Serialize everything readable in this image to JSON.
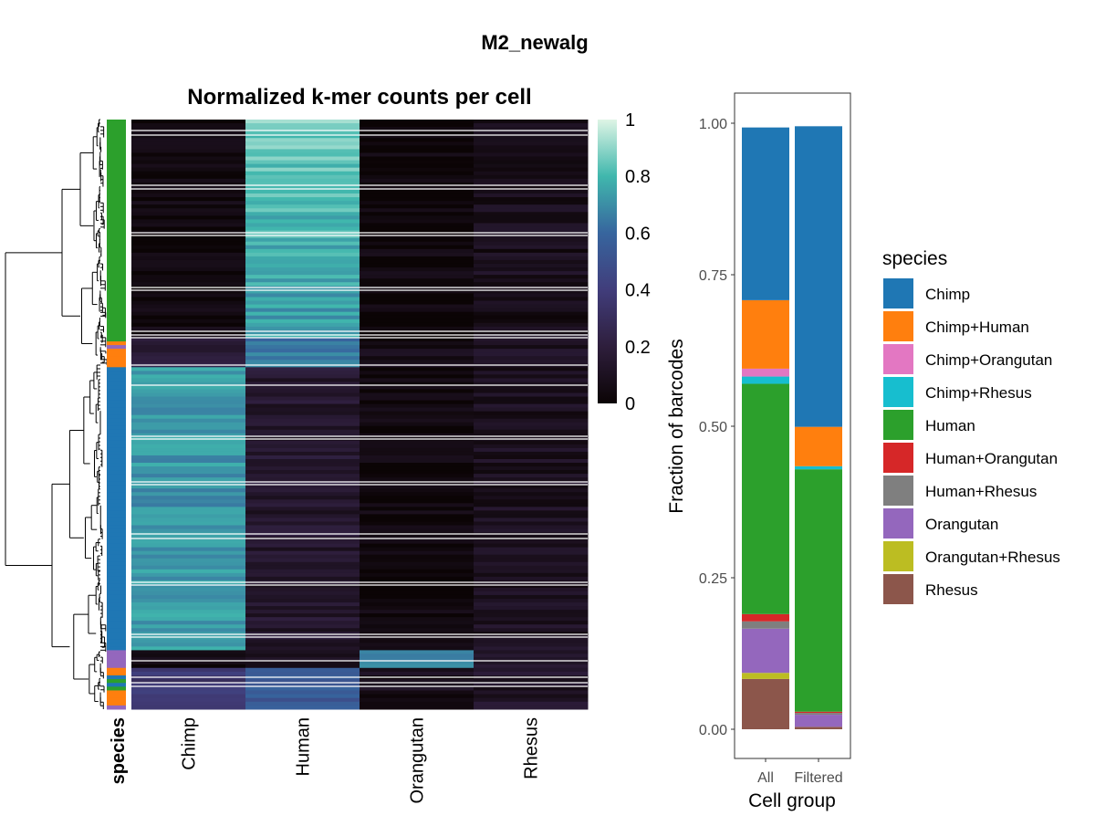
{
  "figure_title": "M2_newalg",
  "heatmap_title": "Normalized k-mer counts per cell",
  "colors": {
    "Chimp": "#1f77b4",
    "Chimp+Human": "#ff7f0e",
    "Chimp+Orangutan": "#e377c2",
    "Chimp+Rhesus": "#17becf",
    "Human": "#2ca02c",
    "Human+Orangutan": "#d62728",
    "Human+Rhesus": "#7f7f7f",
    "Orangutan": "#9467bd",
    "Orangutan+Rhesus": "#bcbd22",
    "Rhesus": "#8c564b"
  },
  "chart_data": [
    {
      "type": "heatmap",
      "title": "Normalized k-mer counts per cell",
      "columns": [
        "Chimp",
        "Human",
        "Orangutan",
        "Rhesus"
      ],
      "annotation_label": "species",
      "colorbar": {
        "ticks": [
          "1",
          "0.8",
          "0.6",
          "0.4",
          "0.2",
          "0"
        ],
        "range": [
          0,
          1
        ],
        "palette": "mako"
      },
      "row_blocks": [
        {
          "species": "Human",
          "fraction": 0.37,
          "values": [
            0.02,
            0.82,
            0.02,
            0.08
          ]
        },
        {
          "species": "Chimp+Human",
          "fraction": 0.05,
          "values": [
            0.2,
            0.65,
            0.05,
            0.12
          ]
        },
        {
          "species": "Chimp",
          "fraction": 0.48,
          "values": [
            0.72,
            0.15,
            0.02,
            0.1
          ]
        },
        {
          "species": "Orangutan",
          "fraction": 0.03,
          "values": [
            0.05,
            0.08,
            0.72,
            0.15
          ]
        },
        {
          "species": "Chimp+Human",
          "fraction": 0.07,
          "values": [
            0.35,
            0.55,
            0.08,
            0.12
          ]
        }
      ]
    },
    {
      "type": "bar",
      "stacked": true,
      "categories": [
        "All",
        "Filtered"
      ],
      "xlabel": "Cell group",
      "ylabel": "Fraction of barcodes",
      "ylim": [
        0,
        1
      ],
      "yticks": [
        "0.00",
        "0.25",
        "0.50",
        "0.75",
        "1.00"
      ],
      "legend_title": "species",
      "legend_position": "right",
      "series": [
        {
          "name": "Rhesus",
          "values": [
            0.083,
            0.004
          ]
        },
        {
          "name": "Orangutan+Rhesus",
          "values": [
            0.01,
            0.0
          ]
        },
        {
          "name": "Orangutan",
          "values": [
            0.073,
            0.02
          ]
        },
        {
          "name": "Human+Rhesus",
          "values": [
            0.012,
            0.003
          ]
        },
        {
          "name": "Human+Orangutan",
          "values": [
            0.012,
            0.002
          ]
        },
        {
          "name": "Human",
          "values": [
            0.38,
            0.4
          ]
        },
        {
          "name": "Chimp+Rhesus",
          "values": [
            0.012,
            0.005
          ]
        },
        {
          "name": "Chimp+Orangutan",
          "values": [
            0.013,
            0.0
          ]
        },
        {
          "name": "Chimp+Human",
          "values": [
            0.113,
            0.065
          ]
        },
        {
          "name": "Chimp",
          "values": [
            0.285,
            0.496
          ]
        }
      ]
    }
  ]
}
